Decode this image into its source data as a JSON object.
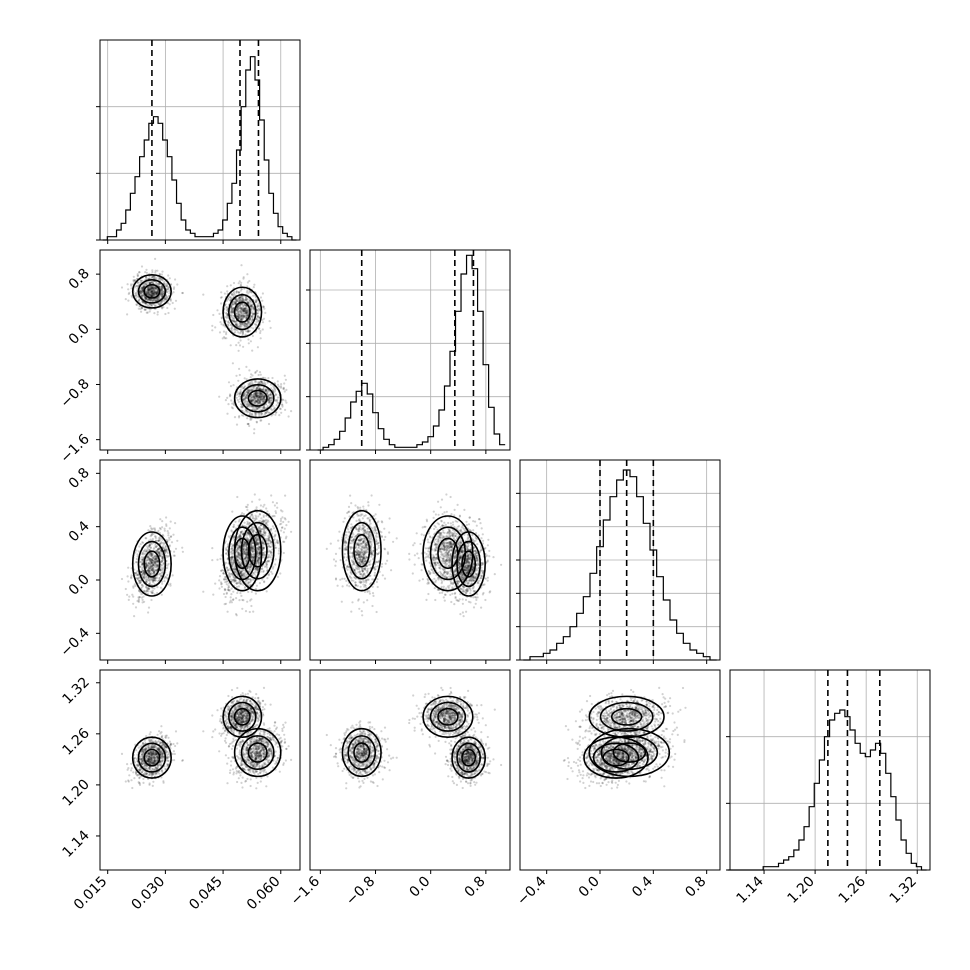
{
  "chart_data": {
    "type": "corner",
    "title": "",
    "parameters": [
      {
        "range": [
          0.013,
          0.065
        ],
        "ticks": [
          0.015,
          0.03,
          0.045,
          0.06
        ],
        "tick_labels": [
          "0.015",
          "0.030",
          "0.045",
          "0.060"
        ]
      },
      {
        "range": [
          -1.75,
          1.15
        ],
        "ticks": [
          -1.6,
          -0.8,
          0.0,
          0.8
        ],
        "tick_labels": [
          "−1.6",
          "−0.8",
          "0.0",
          "0.8"
        ]
      },
      {
        "range": [
          -0.6,
          0.9
        ],
        "ticks": [
          -0.4,
          0.0,
          0.4,
          0.8
        ],
        "tick_labels": [
          "−0.4",
          "0.0",
          "0.4",
          "0.8"
        ]
      },
      {
        "range": [
          1.1,
          1.335
        ],
        "ticks": [
          1.14,
          1.2,
          1.26,
          1.32
        ],
        "tick_labels": [
          "1.14",
          "1.20",
          "1.26",
          "1.32"
        ]
      }
    ],
    "grid": true,
    "diagonal": [
      {
        "bins": [
          0.0143,
          0.0155,
          0.0167,
          0.0179,
          0.0191,
          0.0203,
          0.0215,
          0.0227,
          0.0239,
          0.0251,
          0.0263,
          0.0275,
          0.0287,
          0.0299,
          0.0311,
          0.0323,
          0.0335,
          0.0347,
          0.0359,
          0.0371,
          0.0383,
          0.0395,
          0.0407,
          0.0419,
          0.0431,
          0.0443,
          0.0455,
          0.0467,
          0.0479,
          0.0491,
          0.0503,
          0.0515,
          0.0527,
          0.0539,
          0.0551,
          0.0563,
          0.0575,
          0.0587,
          0.0599,
          0.0611,
          0.0623,
          0.0635
        ],
        "counts": [
          0,
          1,
          1,
          3,
          5,
          9,
          14,
          19,
          25,
          30,
          35,
          37,
          35,
          30,
          25,
          18,
          11,
          6,
          3,
          2,
          1,
          1,
          1,
          1,
          2,
          3,
          6,
          11,
          17,
          27,
          40,
          51,
          55,
          48,
          36,
          24,
          14,
          8,
          4,
          2,
          1,
          0
        ],
        "quantiles": [
          0.0265,
          0.0494,
          0.0542
        ],
        "ylim": [
          0,
          60
        ],
        "yticks": [
          0,
          20,
          40
        ]
      },
      {
        "bins": [
          -1.6,
          -1.52,
          -1.44,
          -1.36,
          -1.28,
          -1.2,
          -1.12,
          -1.04,
          -0.96,
          -0.88,
          -0.8,
          -0.72,
          -0.64,
          -0.56,
          -0.48,
          -0.4,
          -0.32,
          -0.24,
          -0.16,
          -0.08,
          0.0,
          0.08,
          0.16,
          0.24,
          0.32,
          0.4,
          0.48,
          0.56,
          0.64,
          0.72,
          0.8,
          0.88,
          0.96,
          1.04
        ],
        "counts": [
          0,
          1,
          2,
          4,
          7,
          12,
          18,
          22,
          25,
          21,
          14,
          8,
          4,
          2,
          1,
          1,
          1,
          1,
          2,
          3,
          5,
          9,
          15,
          24,
          37,
          52,
          66,
          73,
          68,
          52,
          32,
          16,
          6,
          2
        ],
        "quantiles": [
          -1.0,
          0.35,
          0.62
        ],
        "ylim": [
          0,
          75
        ],
        "yticks": [
          0,
          20,
          40,
          60
        ]
      },
      {
        "bins": [
          -0.55,
          -0.5,
          -0.45,
          -0.4,
          -0.35,
          -0.3,
          -0.25,
          -0.2,
          -0.15,
          -0.1,
          -0.05,
          0.0,
          0.05,
          0.1,
          0.15,
          0.2,
          0.25,
          0.3,
          0.35,
          0.4,
          0.45,
          0.5,
          0.55,
          0.6,
          0.65,
          0.7,
          0.75,
          0.8,
          0.85
        ],
        "counts": [
          0,
          1,
          1,
          2,
          3,
          5,
          7,
          10,
          14,
          19,
          26,
          34,
          42,
          49,
          54,
          57,
          55,
          49,
          41,
          33,
          25,
          18,
          12,
          8,
          5,
          3,
          2,
          1,
          0
        ],
        "quantiles": [
          0.0,
          0.2,
          0.4
        ],
        "ylim": [
          0,
          60
        ],
        "yticks": [
          0,
          10,
          20,
          30,
          40,
          50
        ]
      },
      {
        "bins": [
          1.1,
          1.106,
          1.112,
          1.118,
          1.124,
          1.13,
          1.136,
          1.142,
          1.148,
          1.154,
          1.16,
          1.166,
          1.172,
          1.178,
          1.184,
          1.19,
          1.196,
          1.202,
          1.208,
          1.214,
          1.22,
          1.226,
          1.232,
          1.238,
          1.244,
          1.25,
          1.256,
          1.262,
          1.268,
          1.274,
          1.28,
          1.286,
          1.292,
          1.298,
          1.304,
          1.31,
          1.316,
          1.322,
          1.328
        ],
        "counts": [
          0,
          0,
          0,
          0,
          0,
          0,
          0,
          1,
          1,
          1,
          2,
          3,
          4,
          6,
          9,
          13,
          19,
          26,
          33,
          40,
          45,
          47,
          48,
          46,
          42,
          38,
          35,
          34,
          36,
          38,
          35,
          29,
          22,
          15,
          9,
          5,
          2,
          1,
          0
        ],
        "quantiles": [
          1.215,
          1.238,
          1.276
        ],
        "ylim": [
          0,
          60
        ],
        "yticks": [
          0,
          20,
          40
        ]
      }
    ],
    "blobs": {
      "p0": [
        {
          "m": 0.0265,
          "s": 0.0025
        },
        {
          "m": 0.05,
          "s": 0.0025
        },
        {
          "m": 0.054,
          "s": 0.003
        }
      ],
      "p1": [
        {
          "m": 0.55,
          "s": 0.12
        },
        {
          "m": 0.25,
          "s": 0.18
        },
        {
          "m": -1.0,
          "s": 0.14
        }
      ],
      "p2": [
        {
          "m": 0.12,
          "s": 0.12
        },
        {
          "m": 0.2,
          "s": 0.14
        },
        {
          "m": 0.22,
          "s": 0.15
        }
      ],
      "p3": [
        {
          "m": 1.232,
          "s": 0.012
        },
        {
          "m": 1.28,
          "s": 0.012
        },
        {
          "m": 1.238,
          "s": 0.014
        }
      ]
    }
  }
}
